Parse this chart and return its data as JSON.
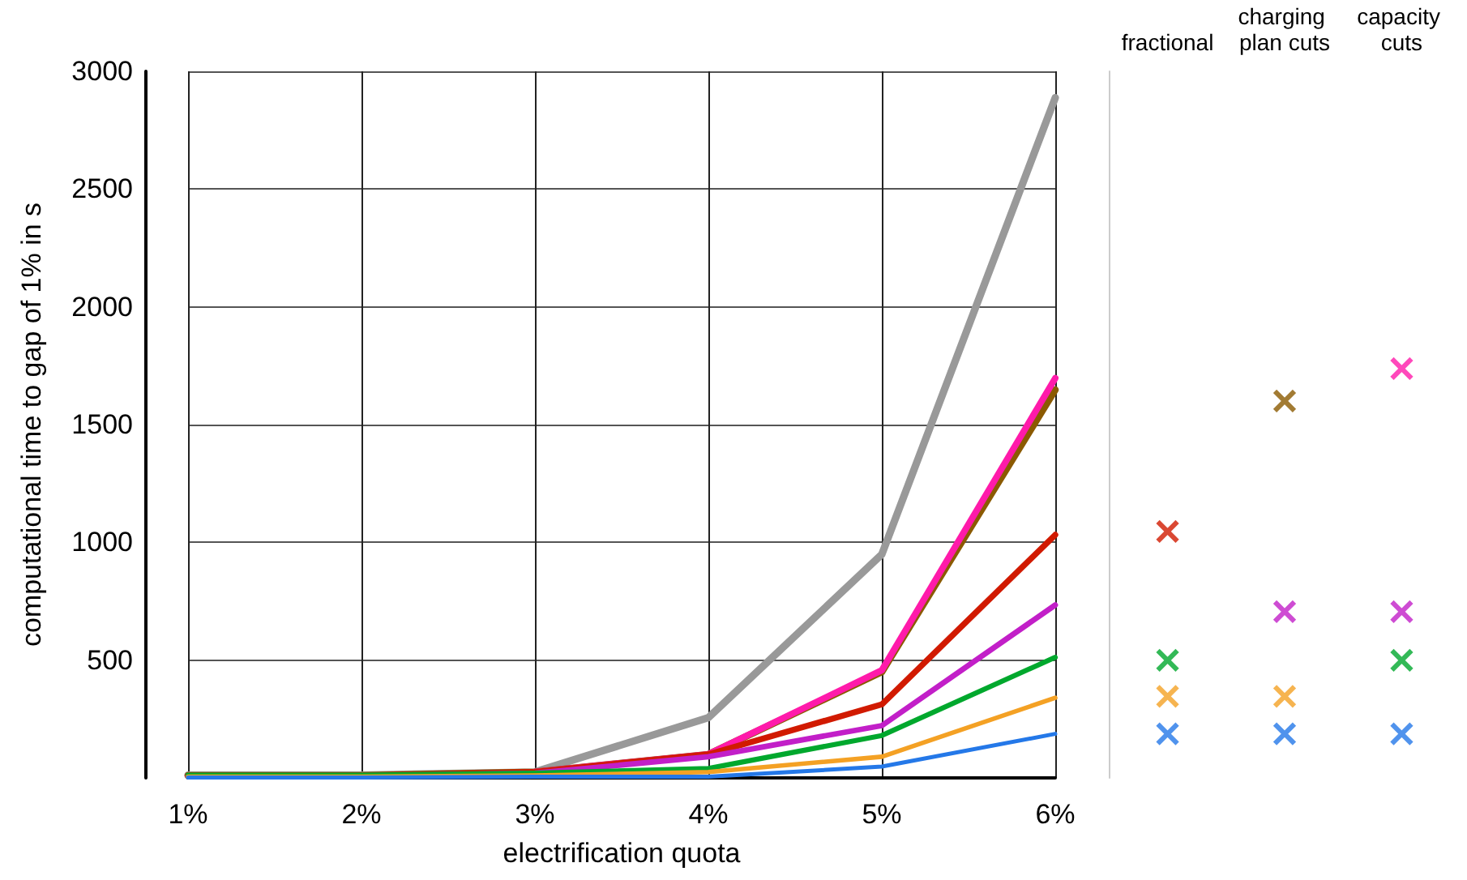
{
  "chart_data": [
    {
      "type": "line",
      "xlabel": "electrification quota",
      "ylabel": "computational time to gap of 1% in s",
      "categories": [
        "1%",
        "2%",
        "3%",
        "4%",
        "5%",
        "6%"
      ],
      "series": [
        {
          "color": "#999999",
          "values": [
            12,
            12,
            25,
            256,
            949,
            2888
          ]
        },
        {
          "color": "#8b5a00",
          "values": [
            10,
            10,
            25,
            100,
            450,
            1648
          ]
        },
        {
          "color": "#ff1aaa",
          "values": [
            null,
            null,
            25,
            100,
            457,
            1697
          ]
        },
        {
          "color": "#d11a00",
          "values": [
            10,
            10,
            25,
            100,
            312,
            1032
          ]
        },
        {
          "color": "#c21fc8",
          "values": [
            8,
            8,
            20,
            90,
            222,
            734
          ]
        },
        {
          "color": "#00a82d",
          "values": [
            12,
            12,
            20,
            40,
            180,
            512
          ]
        },
        {
          "color": "#f4a124",
          "values": [
            5,
            5,
            10,
            25,
            90,
            340
          ]
        },
        {
          "color": "#2478e8",
          "values": [
            2,
            2,
            5,
            5,
            48,
            187
          ]
        }
      ],
      "ylim": [
        0,
        3000
      ],
      "yticks": [
        500,
        1000,
        1500,
        2000,
        2500,
        3000
      ],
      "grid": true,
      "marker": "none",
      "line_style": "solid"
    },
    {
      "type": "scatter",
      "categories": [
        "fractional",
        "charging plan cuts",
        "capacity cuts"
      ],
      "series": [
        {
          "color": "#d11a00",
          "values": [
            1046,
            null,
            null
          ]
        },
        {
          "color": "#8b5a00",
          "values": [
            null,
            1600,
            null
          ]
        },
        {
          "color": "#ff1aaa",
          "values": [
            null,
            null,
            1738
          ]
        },
        {
          "color": "#c21fc8",
          "values": [
            null,
            706,
            706
          ]
        },
        {
          "color": "#00a82d",
          "values": [
            499,
            null,
            499
          ]
        },
        {
          "color": "#f4a124",
          "values": [
            346,
            346,
            null
          ]
        },
        {
          "color": "#2478e8",
          "values": [
            187,
            187,
            187
          ]
        }
      ],
      "ylim": [
        0,
        3000
      ],
      "tick_labels": "x",
      "marker": "cross"
    }
  ]
}
